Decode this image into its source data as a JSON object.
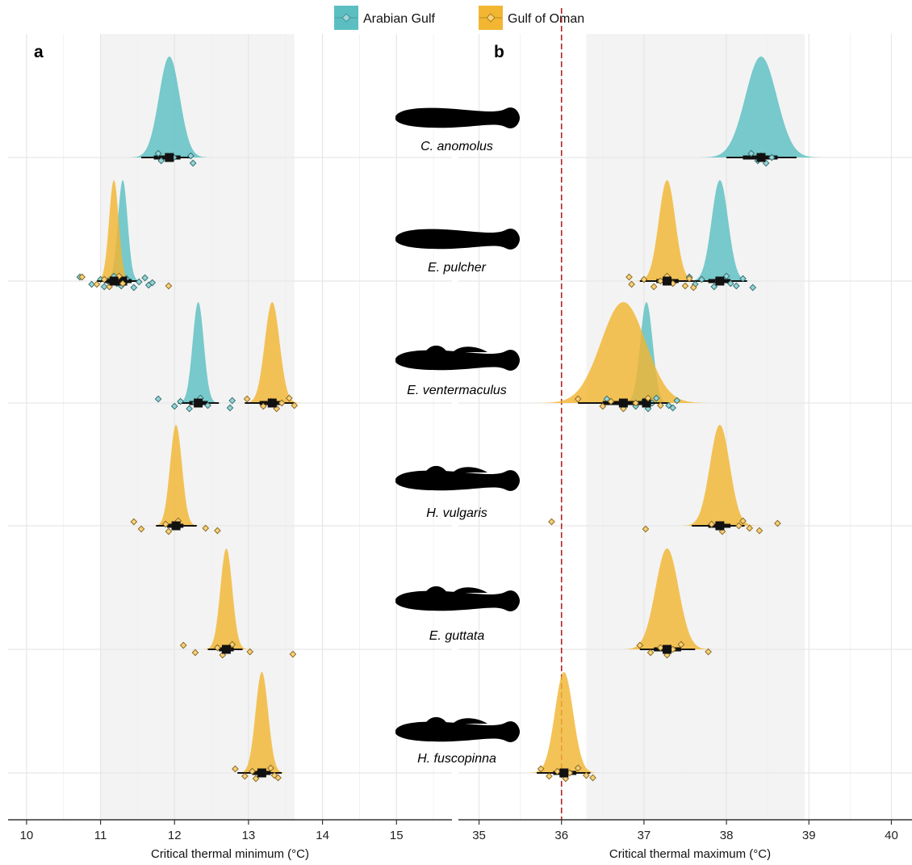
{
  "legend": [
    {
      "label": "Arabian Gulf",
      "color": "#5BBFC2"
    },
    {
      "label": "Gulf of Oman",
      "color": "#F2B632"
    }
  ],
  "panels": [
    {
      "letter": "a",
      "xlabel": "Critical thermal minimum (°C)"
    },
    {
      "letter": "b",
      "xlabel": "Critical thermal maximum (°C)"
    }
  ],
  "reference_line": {
    "value": 36,
    "color": "#B22222"
  },
  "chart_data": [
    {
      "type": "density-ridge",
      "panel": "a",
      "xlabel": "Critical thermal minimum (°C)",
      "xlim": [
        9.75,
        15.75
      ],
      "xticks": [
        10,
        11,
        12,
        13,
        14,
        15
      ],
      "shaded_range": [
        11.0,
        13.62
      ],
      "grid": true,
      "categories": [
        "C. anomolus",
        "E. pulcher",
        "E. ventermaculus",
        "H. vulgaris",
        "E. guttata",
        "H. fuscopinna"
      ],
      "series": [
        {
          "name": "Arabian Gulf",
          "color": "#5BBFC2",
          "values": [
            {
              "category": "C. anomolus",
              "mean": 11.93,
              "sd": 0.14,
              "ci": [
                11.72,
                12.08
              ],
              "ci_thin": [
                11.55,
                12.22
              ],
              "points": [
                11.78,
                11.82,
                12.22,
                12.25,
                11.99
              ]
            },
            {
              "category": "E. pulcher",
              "mean": 11.3,
              "sd": 0.065,
              "ci": [
                11.18,
                11.42
              ],
              "ci_thin": [
                11.05,
                11.55
              ],
              "points": [
                10.72,
                10.88,
                11.0,
                11.05,
                11.1,
                11.18,
                11.22,
                11.28,
                11.35,
                11.45,
                11.52,
                11.6,
                11.65,
                11.7
              ]
            },
            {
              "category": "E. ventermaculus",
              "mean": 12.32,
              "sd": 0.075,
              "ci": [
                12.2,
                12.45
              ],
              "ci_thin": [
                12.05,
                12.6
              ],
              "points": [
                11.78,
                12.0,
                12.08,
                12.2,
                12.28,
                12.35,
                12.45,
                12.75,
                12.78
              ]
            }
          ]
        },
        {
          "name": "Gulf of Oman",
          "color": "#F2B632",
          "values": [
            {
              "category": "E. pulcher",
              "mean": 11.18,
              "sd": 0.065,
              "ci": [
                11.05,
                11.3
              ],
              "ci_thin": [
                10.95,
                11.4
              ],
              "points": [
                10.75,
                10.95,
                11.05,
                11.12,
                11.2,
                11.25,
                11.3,
                11.92
              ]
            },
            {
              "category": "E. ventermaculus",
              "mean": 13.32,
              "sd": 0.1,
              "ci": [
                13.15,
                13.45
              ],
              "ci_thin": [
                12.95,
                13.62
              ],
              "points": [
                12.98,
                13.2,
                13.3,
                13.38,
                13.45,
                13.55,
                13.62
              ]
            },
            {
              "category": "H. vulgaris",
              "mean": 12.02,
              "sd": 0.08,
              "ci": [
                11.9,
                12.12
              ],
              "ci_thin": [
                11.75,
                12.3
              ],
              "points": [
                11.45,
                11.55,
                11.88,
                11.92,
                12.0,
                12.05,
                12.42,
                12.58
              ]
            },
            {
              "category": "E. guttata",
              "mean": 12.7,
              "sd": 0.08,
              "ci": [
                12.6,
                12.8
              ],
              "ci_thin": [
                12.45,
                12.92
              ],
              "points": [
                12.12,
                12.28,
                12.58,
                12.65,
                12.72,
                12.78,
                13.02,
                13.6
              ]
            },
            {
              "category": "H. fuscopinna",
              "mean": 13.18,
              "sd": 0.085,
              "ci": [
                13.05,
                13.3
              ],
              "ci_thin": [
                12.85,
                13.45
              ],
              "points": [
                12.82,
                12.95,
                13.05,
                13.1,
                13.2,
                13.3,
                13.35,
                13.4
              ]
            }
          ]
        }
      ]
    },
    {
      "type": "density-ridge",
      "panel": "b",
      "xlabel": "Critical thermal maximum (°C)",
      "xlim": [
        34.75,
        40.25
      ],
      "xticks": [
        35,
        36,
        37,
        38,
        39,
        40
      ],
      "shaded_range": [
        36.3,
        38.95
      ],
      "grid": true,
      "categories": [
        "C. anomolus",
        "E. pulcher",
        "E. ventermaculus",
        "H. vulgaris",
        "E. guttata",
        "H. fuscopinna"
      ],
      "series": [
        {
          "name": "Arabian Gulf",
          "color": "#5BBFC2",
          "values": [
            {
              "category": "C. anomolus",
              "mean": 38.42,
              "sd": 0.19,
              "ci": [
                38.2,
                38.62
              ],
              "ci_thin": [
                38.0,
                38.85
              ],
              "points": [
                38.3,
                38.38,
                38.42,
                38.48,
                38.55
              ]
            },
            {
              "category": "E. pulcher",
              "mean": 37.92,
              "sd": 0.1,
              "ci": [
                37.78,
                38.05
              ],
              "ci_thin": [
                37.6,
                38.25
              ],
              "points": [
                37.55,
                37.62,
                37.7,
                37.85,
                37.9,
                38.0,
                38.05,
                38.12,
                38.2,
                38.32
              ]
            },
            {
              "category": "E. ventermaculus",
              "mean": 37.03,
              "sd": 0.075,
              "ci": [
                36.9,
                37.12
              ],
              "ci_thin": [
                36.75,
                37.3
              ],
              "points": [
                36.55,
                36.9,
                37.0,
                37.05,
                37.1,
                37.15,
                37.3,
                37.35,
                37.4
              ]
            }
          ]
        },
        {
          "name": "Gulf of Oman",
          "color": "#F2B632",
          "values": [
            {
              "category": "E. pulcher",
              "mean": 37.28,
              "sd": 0.1,
              "ci": [
                37.15,
                37.42
              ],
              "ci_thin": [
                36.95,
                37.6
              ],
              "points": [
                36.82,
                36.85,
                37.0,
                37.12,
                37.2,
                37.28,
                37.35,
                37.5,
                37.55,
                37.6
              ]
            },
            {
              "category": "E. ventermaculus",
              "mean": 36.75,
              "sd": 0.27,
              "ci": [
                36.5,
                37.0
              ],
              "ci_thin": [
                36.2,
                37.25
              ],
              "points": [
                36.2,
                36.5,
                36.6,
                36.75,
                36.9,
                37.05,
                37.2
              ]
            },
            {
              "category": "H. vulgaris",
              "mean": 37.92,
              "sd": 0.12,
              "ci": [
                37.78,
                38.05
              ],
              "ci_thin": [
                37.58,
                38.22
              ],
              "points": [
                35.88,
                37.02,
                37.82,
                37.95,
                38.15,
                38.2,
                38.28,
                38.4,
                38.62
              ]
            },
            {
              "category": "E. guttata",
              "mean": 37.28,
              "sd": 0.14,
              "ci": [
                37.12,
                37.45
              ],
              "ci_thin": [
                36.95,
                37.62
              ],
              "points": [
                36.95,
                37.08,
                37.2,
                37.28,
                37.35,
                37.45,
                37.78
              ]
            },
            {
              "category": "H. fuscopinna",
              "mean": 36.03,
              "sd": 0.11,
              "ci": [
                35.9,
                36.18
              ],
              "ci_thin": [
                35.7,
                36.35
              ],
              "points": [
                35.75,
                35.85,
                35.95,
                36.05,
                36.1,
                36.2,
                36.3,
                36.38
              ]
            }
          ]
        }
      ]
    }
  ]
}
